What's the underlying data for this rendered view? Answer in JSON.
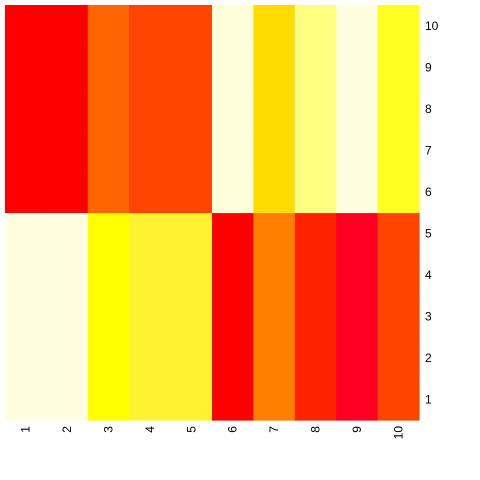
{
  "chart_data": {
    "type": "heatmap",
    "x_labels": [
      "1",
      "2",
      "3",
      "4",
      "5",
      "6",
      "7",
      "8",
      "9",
      "10"
    ],
    "y_labels": [
      "1",
      "2",
      "3",
      "4",
      "5",
      "6",
      "7",
      "8",
      "9",
      "10"
    ],
    "x_label_rotation": "vertical",
    "y_axis_side": "right",
    "columns": [
      {
        "x": "1",
        "lower_color": "#FFFFE0",
        "upper_color": "#FF0000"
      },
      {
        "x": "2",
        "lower_color": "#FFFFE0",
        "upper_color": "#FF0000"
      },
      {
        "x": "3",
        "lower_color": "#FFFF00",
        "upper_color": "#FF6600"
      },
      {
        "x": "4",
        "lower_color": "#FFF230",
        "upper_color": "#FF4500"
      },
      {
        "x": "5",
        "lower_color": "#FFF230",
        "upper_color": "#FF4500"
      },
      {
        "x": "6",
        "lower_color": "#FF0000",
        "upper_color": "#FFFFDC"
      },
      {
        "x": "7",
        "lower_color": "#FF8000",
        "upper_color": "#FFDC00"
      },
      {
        "x": "8",
        "lower_color": "#FF2200",
        "upper_color": "#FFFF80"
      },
      {
        "x": "9",
        "lower_color": "#FF0022",
        "upper_color": "#FFFFE0"
      },
      {
        "x": "10",
        "lower_color": "#FF4400",
        "upper_color": "#FFFF22"
      }
    ],
    "row_groups": {
      "lower": [
        "1",
        "2",
        "3",
        "4",
        "5"
      ],
      "upper": [
        "6",
        "7",
        "8",
        "9",
        "10"
      ]
    },
    "grid": false,
    "legend": "none"
  }
}
